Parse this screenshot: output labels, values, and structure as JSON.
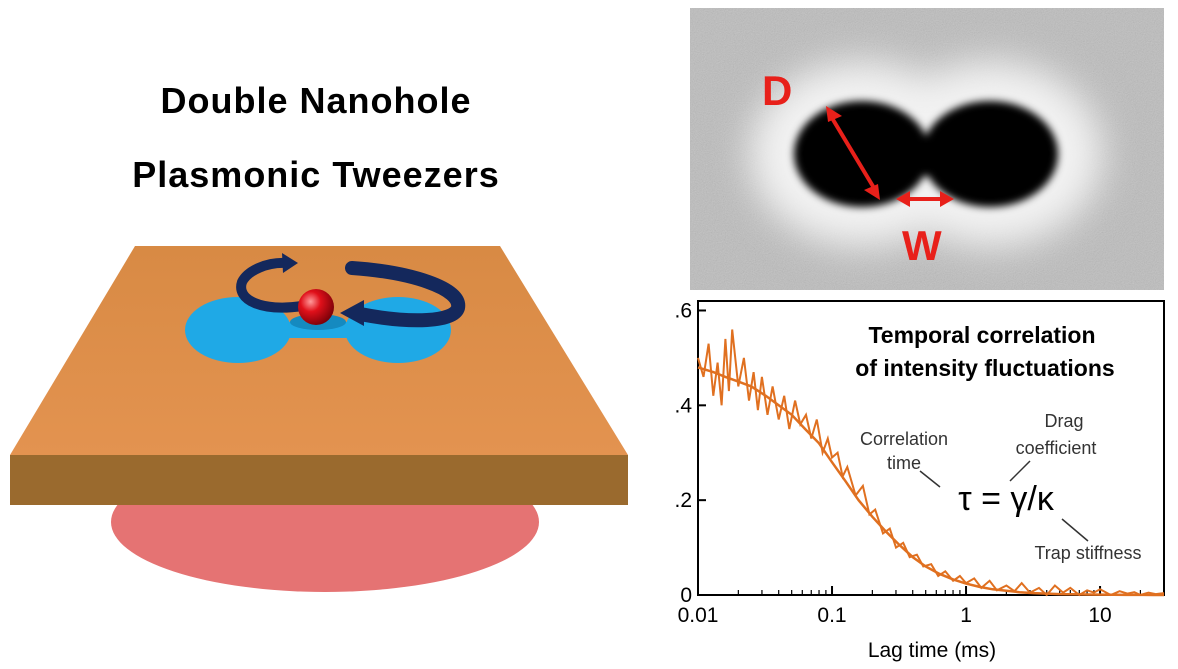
{
  "title": {
    "line1": "Double Nanohole",
    "line2": "Plasmonic Tweezers"
  },
  "micrograph": {
    "label_d": "D",
    "label_w": "W",
    "colors": {
      "annotation": "#e8201a",
      "background": "#bdbdbd",
      "hole": "#050505"
    }
  },
  "illustration": {
    "colors": {
      "film_top": "#d88a44",
      "film_front": "#9a6a2e",
      "holes": "#1fa9e6",
      "particle": "#e0101a",
      "beam": "#e57373",
      "arrows": "#14285c"
    }
  },
  "chart_data": {
    "type": "line",
    "title": "Temporal correlation\nof intensity fluctuations",
    "title_lines": [
      "Temporal correlation",
      "of intensity fluctuations"
    ],
    "xlabel": "Lag time (ms)",
    "ylabel": "",
    "x_scale": "log",
    "xlim": [
      0.01,
      30
    ],
    "ylim": [
      0,
      0.62
    ],
    "x_ticks": [
      0.01,
      0.1,
      1,
      10
    ],
    "x_tick_labels": [
      "0.01",
      "0.1",
      "1",
      "10"
    ],
    "y_ticks": [
      0,
      0.2,
      0.4,
      0.6
    ],
    "y_tick_labels": [
      "0",
      ".2",
      ".4",
      ".6"
    ],
    "grid": false,
    "color": "#e07020",
    "series": [
      {
        "kind": "measured",
        "x": [
          0.01,
          0.011,
          0.012,
          0.013,
          0.014,
          0.015,
          0.016,
          0.017,
          0.018,
          0.02,
          0.022,
          0.024,
          0.026,
          0.028,
          0.03,
          0.033,
          0.036,
          0.04,
          0.044,
          0.048,
          0.053,
          0.058,
          0.064,
          0.07,
          0.077,
          0.085,
          0.093,
          0.1,
          0.11,
          0.12,
          0.13,
          0.15,
          0.17,
          0.19,
          0.21,
          0.24,
          0.27,
          0.3,
          0.34,
          0.38,
          0.43,
          0.48,
          0.55,
          0.62,
          0.7,
          0.8,
          0.9,
          1.0,
          1.15,
          1.3,
          1.5,
          1.7,
          2.0,
          2.3,
          2.6,
          3.0,
          3.5,
          4.0,
          4.6,
          5.3,
          6.0,
          7.0,
          8.0,
          9.0,
          10,
          12,
          14,
          16,
          18,
          20,
          23,
          26,
          30
        ],
        "y": [
          0.5,
          0.46,
          0.53,
          0.42,
          0.49,
          0.4,
          0.54,
          0.43,
          0.56,
          0.44,
          0.5,
          0.41,
          0.47,
          0.39,
          0.46,
          0.38,
          0.44,
          0.37,
          0.42,
          0.35,
          0.41,
          0.36,
          0.38,
          0.33,
          0.37,
          0.3,
          0.33,
          0.29,
          0.3,
          0.25,
          0.27,
          0.21,
          0.23,
          0.17,
          0.18,
          0.13,
          0.14,
          0.1,
          0.11,
          0.08,
          0.085,
          0.06,
          0.065,
          0.04,
          0.05,
          0.03,
          0.04,
          0.025,
          0.035,
          0.015,
          0.03,
          0.01,
          0.02,
          0.008,
          0.025,
          0.005,
          0.015,
          0.0,
          0.02,
          0.005,
          0.015,
          0.0,
          0.01,
          0.005,
          0.012,
          0.0,
          0.008,
          0.003,
          0.006,
          0.0,
          0.005,
          0.002,
          0.004
        ]
      },
      {
        "kind": "fit",
        "x": [
          0.01,
          0.013,
          0.016,
          0.02,
          0.025,
          0.032,
          0.04,
          0.05,
          0.063,
          0.08,
          0.1,
          0.126,
          0.158,
          0.2,
          0.25,
          0.32,
          0.4,
          0.5,
          0.63,
          0.8,
          1.0,
          1.26,
          1.58,
          2.0,
          2.5,
          3.2,
          4.0,
          5.0,
          6.3,
          8.0,
          10,
          12.6,
          15.8,
          20,
          25,
          30
        ],
        "y": [
          0.48,
          0.47,
          0.46,
          0.45,
          0.44,
          0.42,
          0.4,
          0.38,
          0.35,
          0.32,
          0.28,
          0.24,
          0.2,
          0.165,
          0.135,
          0.105,
          0.08,
          0.06,
          0.045,
          0.033,
          0.024,
          0.017,
          0.012,
          0.009,
          0.006,
          0.004,
          0.003,
          0.002,
          0.0015,
          0.001,
          0.0008,
          0.0005,
          0.0003,
          0.0002,
          0.0001,
          0.0001
        ]
      }
    ],
    "annotations": {
      "correlation_time_1": "Correlation",
      "correlation_time_2": "time",
      "drag_1": "Drag",
      "drag_2": "coefficient",
      "formula": "τ = γ/κ",
      "trap": "Trap stiffness"
    }
  }
}
